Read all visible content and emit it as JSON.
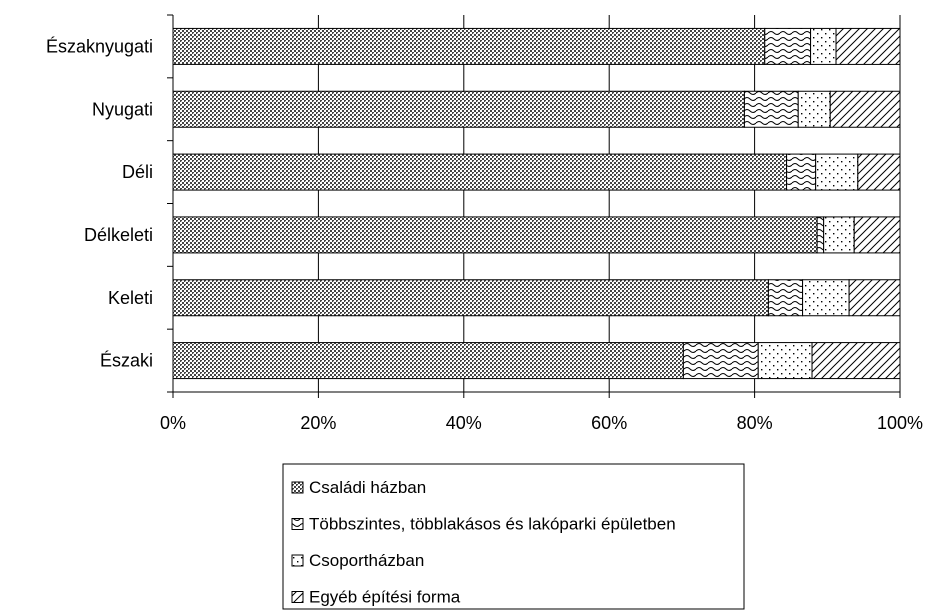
{
  "chart_data": {
    "type": "bar",
    "orientation": "horizontal",
    "stacked": "percent",
    "categories": [
      "Északnyugati",
      "Nyugati",
      "Déli",
      "Délkeleti",
      "Keleti",
      "Északi"
    ],
    "series": [
      {
        "name": "Családi házban",
        "values": [
          81.4,
          78.6,
          84.4,
          88.6,
          81.9,
          70.2
        ],
        "pattern": "crosshatch-dots"
      },
      {
        "name": "Többszintes, többlakásos és lakóparki épületben",
        "values": [
          6.3,
          7.4,
          4.0,
          0.9,
          4.7,
          10.3
        ],
        "pattern": "waves"
      },
      {
        "name": "Csoportházban",
        "values": [
          3.5,
          4.4,
          5.8,
          4.2,
          6.4,
          7.4
        ],
        "pattern": "sparse-dots"
      },
      {
        "name": "Egyéb építési forma",
        "values": [
          8.8,
          9.6,
          5.8,
          6.3,
          7.0,
          12.1
        ],
        "pattern": "diagonal"
      }
    ],
    "x_ticks": [
      "0%",
      "20%",
      "40%",
      "60%",
      "80%",
      "100%"
    ],
    "xlim": [
      0,
      100
    ],
    "grid": "vertical",
    "legend_position": "bottom",
    "title": "",
    "xlabel": "",
    "ylabel": ""
  }
}
